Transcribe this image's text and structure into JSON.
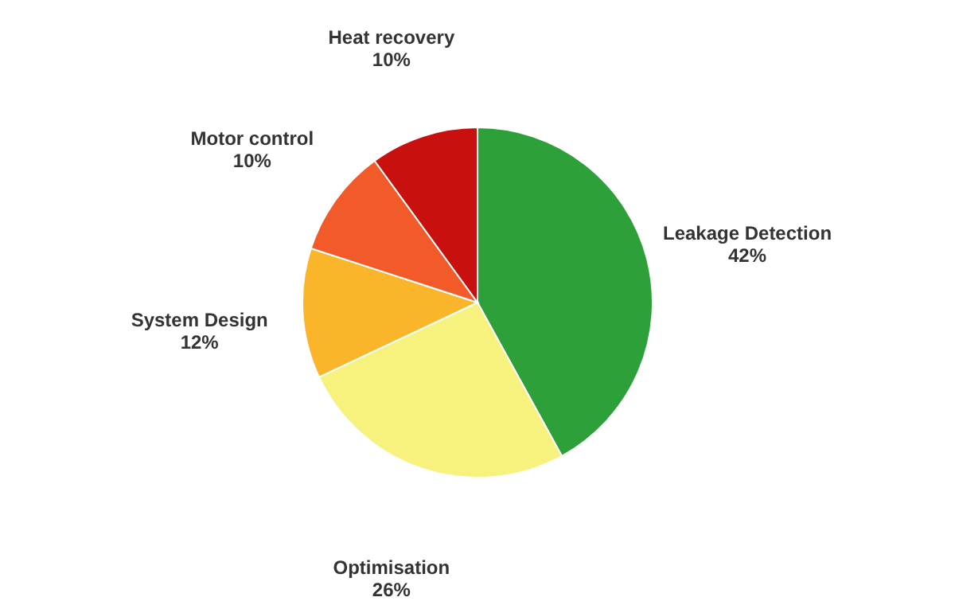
{
  "chart_data": {
    "type": "pie",
    "categories": [
      "Leakage Detection",
      "Optimisation",
      "System Design",
      "Motor control",
      "Heat recovery"
    ],
    "values": [
      42,
      26,
      12,
      10,
      10
    ],
    "value_labels": [
      "42%",
      "26%",
      "12%",
      "10%",
      "10%"
    ],
    "colors": [
      "#2ea03a",
      "#f7f27e",
      "#fbb52a",
      "#f25a2a",
      "#c8100e"
    ]
  }
}
